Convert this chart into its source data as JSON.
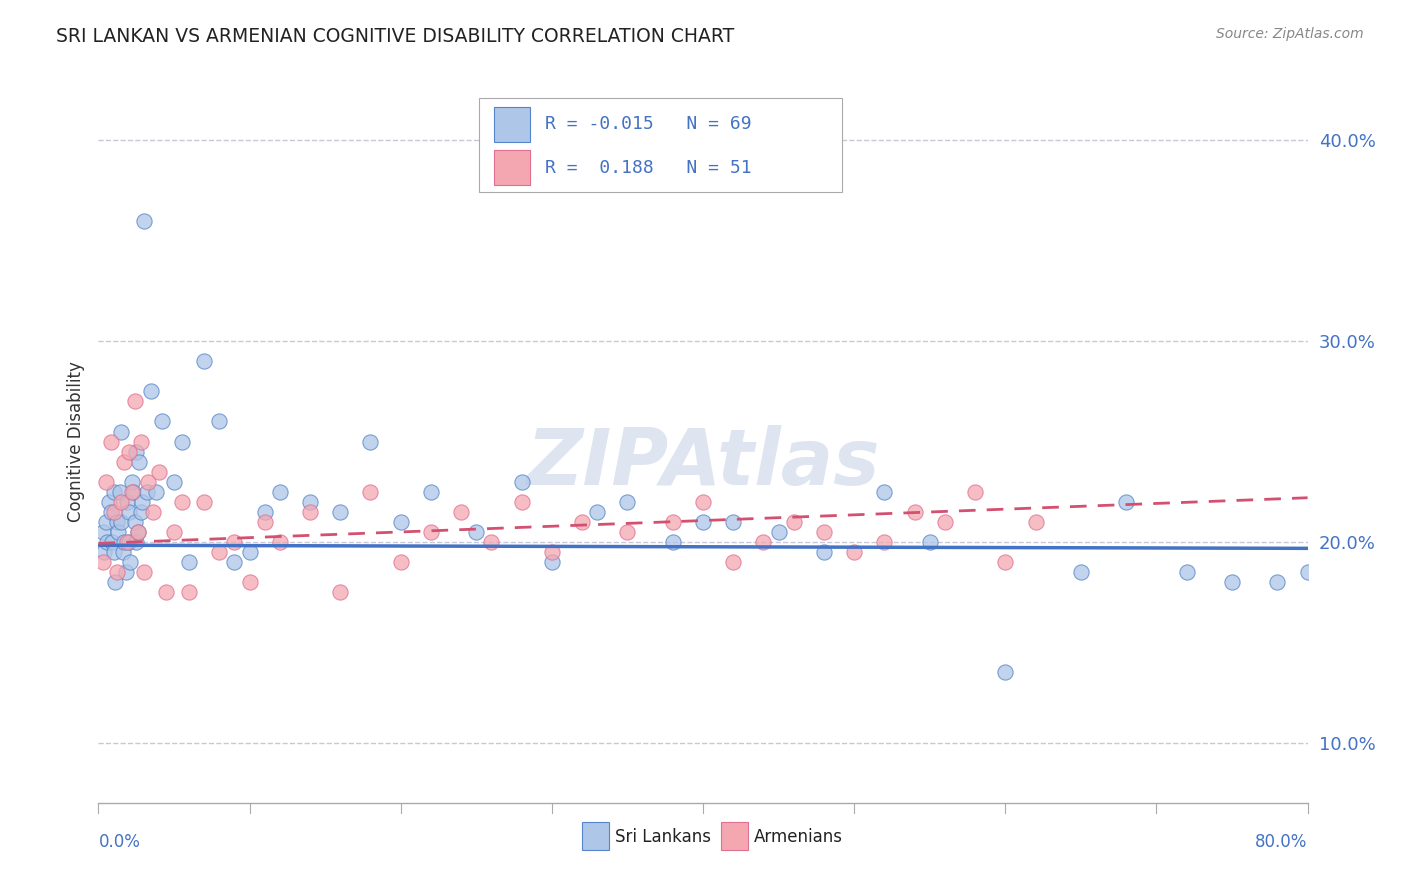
{
  "title": "SRI LANKAN VS ARMENIAN COGNITIVE DISABILITY CORRELATION CHART",
  "source_text": "Source: ZipAtlas.com",
  "ylabel": "Cognitive Disability",
  "xlim": [
    0.0,
    80.0
  ],
  "ylim": [
    7.0,
    43.0
  ],
  "yticks": [
    10.0,
    20.0,
    30.0,
    40.0
  ],
  "ytick_labels": [
    "10.0%",
    "20.0%",
    "30.0%",
    "40.0%"
  ],
  "sri_lankan_color": "#aec6e8",
  "armenian_color": "#f4a7b0",
  "sri_lankan_edge_color": "#5585c8",
  "armenian_edge_color": "#e07090",
  "sri_lankan_line_color": "#4472c4",
  "armenian_line_color": "#d45070",
  "sri_lankan_R": -0.015,
  "sri_lankan_N": 69,
  "armenian_R": 0.188,
  "armenian_N": 51,
  "watermark": "ZIPAtlas",
  "legend_label_1": "Sri Lankans",
  "legend_label_2": "Armenians",
  "sri_lankan_x": [
    0.3,
    0.4,
    0.5,
    0.6,
    0.7,
    0.8,
    0.9,
    1.0,
    1.0,
    1.1,
    1.2,
    1.3,
    1.4,
    1.5,
    1.5,
    1.6,
    1.7,
    1.8,
    1.9,
    2.0,
    2.0,
    2.1,
    2.2,
    2.3,
    2.4,
    2.5,
    2.5,
    2.6,
    2.7,
    2.8,
    2.9,
    3.0,
    3.2,
    3.5,
    3.8,
    4.2,
    5.0,
    5.5,
    6.0,
    7.0,
    8.0,
    9.0,
    10.0,
    11.0,
    12.0,
    14.0,
    16.0,
    18.0,
    20.0,
    22.0,
    25.0,
    28.0,
    30.0,
    33.0,
    35.0,
    38.0,
    40.0,
    42.0,
    45.0,
    48.0,
    52.0,
    55.0,
    60.0,
    65.0,
    68.0,
    72.0,
    75.0,
    78.0,
    80.0
  ],
  "sri_lankan_y": [
    20.5,
    19.5,
    21.0,
    20.0,
    22.0,
    21.5,
    20.0,
    19.5,
    22.5,
    18.0,
    21.0,
    20.5,
    22.5,
    21.0,
    25.5,
    19.5,
    20.0,
    18.5,
    22.0,
    20.0,
    21.5,
    19.0,
    23.0,
    22.5,
    21.0,
    20.0,
    24.5,
    20.5,
    24.0,
    21.5,
    22.0,
    36.0,
    22.5,
    27.5,
    22.5,
    26.0,
    23.0,
    25.0,
    19.0,
    29.0,
    26.0,
    19.0,
    19.5,
    21.5,
    22.5,
    22.0,
    21.5,
    25.0,
    21.0,
    22.5,
    20.5,
    23.0,
    19.0,
    21.5,
    22.0,
    20.0,
    21.0,
    21.0,
    20.5,
    19.5,
    22.5,
    20.0,
    13.5,
    18.5,
    22.0,
    18.5,
    18.0,
    18.0,
    18.5
  ],
  "armenian_x": [
    0.3,
    0.5,
    0.8,
    1.0,
    1.2,
    1.5,
    1.7,
    1.9,
    2.0,
    2.2,
    2.4,
    2.6,
    2.8,
    3.0,
    3.3,
    3.6,
    4.0,
    4.5,
    5.0,
    5.5,
    6.0,
    7.0,
    8.0,
    9.0,
    10.0,
    11.0,
    12.0,
    14.0,
    16.0,
    18.0,
    20.0,
    22.0,
    24.0,
    26.0,
    28.0,
    30.0,
    32.0,
    35.0,
    38.0,
    40.0,
    42.0,
    44.0,
    46.0,
    48.0,
    50.0,
    52.0,
    54.0,
    56.0,
    58.0,
    60.0,
    62.0
  ],
  "armenian_y": [
    19.0,
    23.0,
    25.0,
    21.5,
    18.5,
    22.0,
    24.0,
    20.0,
    24.5,
    22.5,
    27.0,
    20.5,
    25.0,
    18.5,
    23.0,
    21.5,
    23.5,
    17.5,
    20.5,
    22.0,
    17.5,
    22.0,
    19.5,
    20.0,
    18.0,
    21.0,
    20.0,
    21.5,
    17.5,
    22.5,
    19.0,
    20.5,
    21.5,
    20.0,
    22.0,
    19.5,
    21.0,
    20.5,
    21.0,
    22.0,
    19.0,
    20.0,
    21.0,
    20.5,
    19.5,
    20.0,
    21.5,
    21.0,
    22.5,
    19.0,
    21.0
  ]
}
